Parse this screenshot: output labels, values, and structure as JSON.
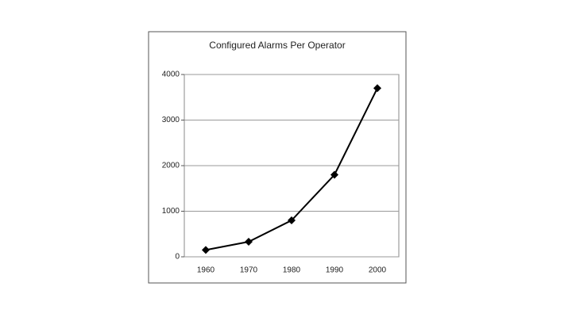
{
  "chart_data": {
    "type": "line",
    "title": "Configured Alarms Per Operator",
    "categories": [
      "1960",
      "1970",
      "1980",
      "1990",
      "2000"
    ],
    "values": [
      150,
      330,
      800,
      1800,
      3700
    ],
    "color": "#000000",
    "ylim": [
      0,
      4000
    ],
    "yticks": [
      0,
      1000,
      2000,
      3000,
      4000
    ],
    "grid": true
  }
}
